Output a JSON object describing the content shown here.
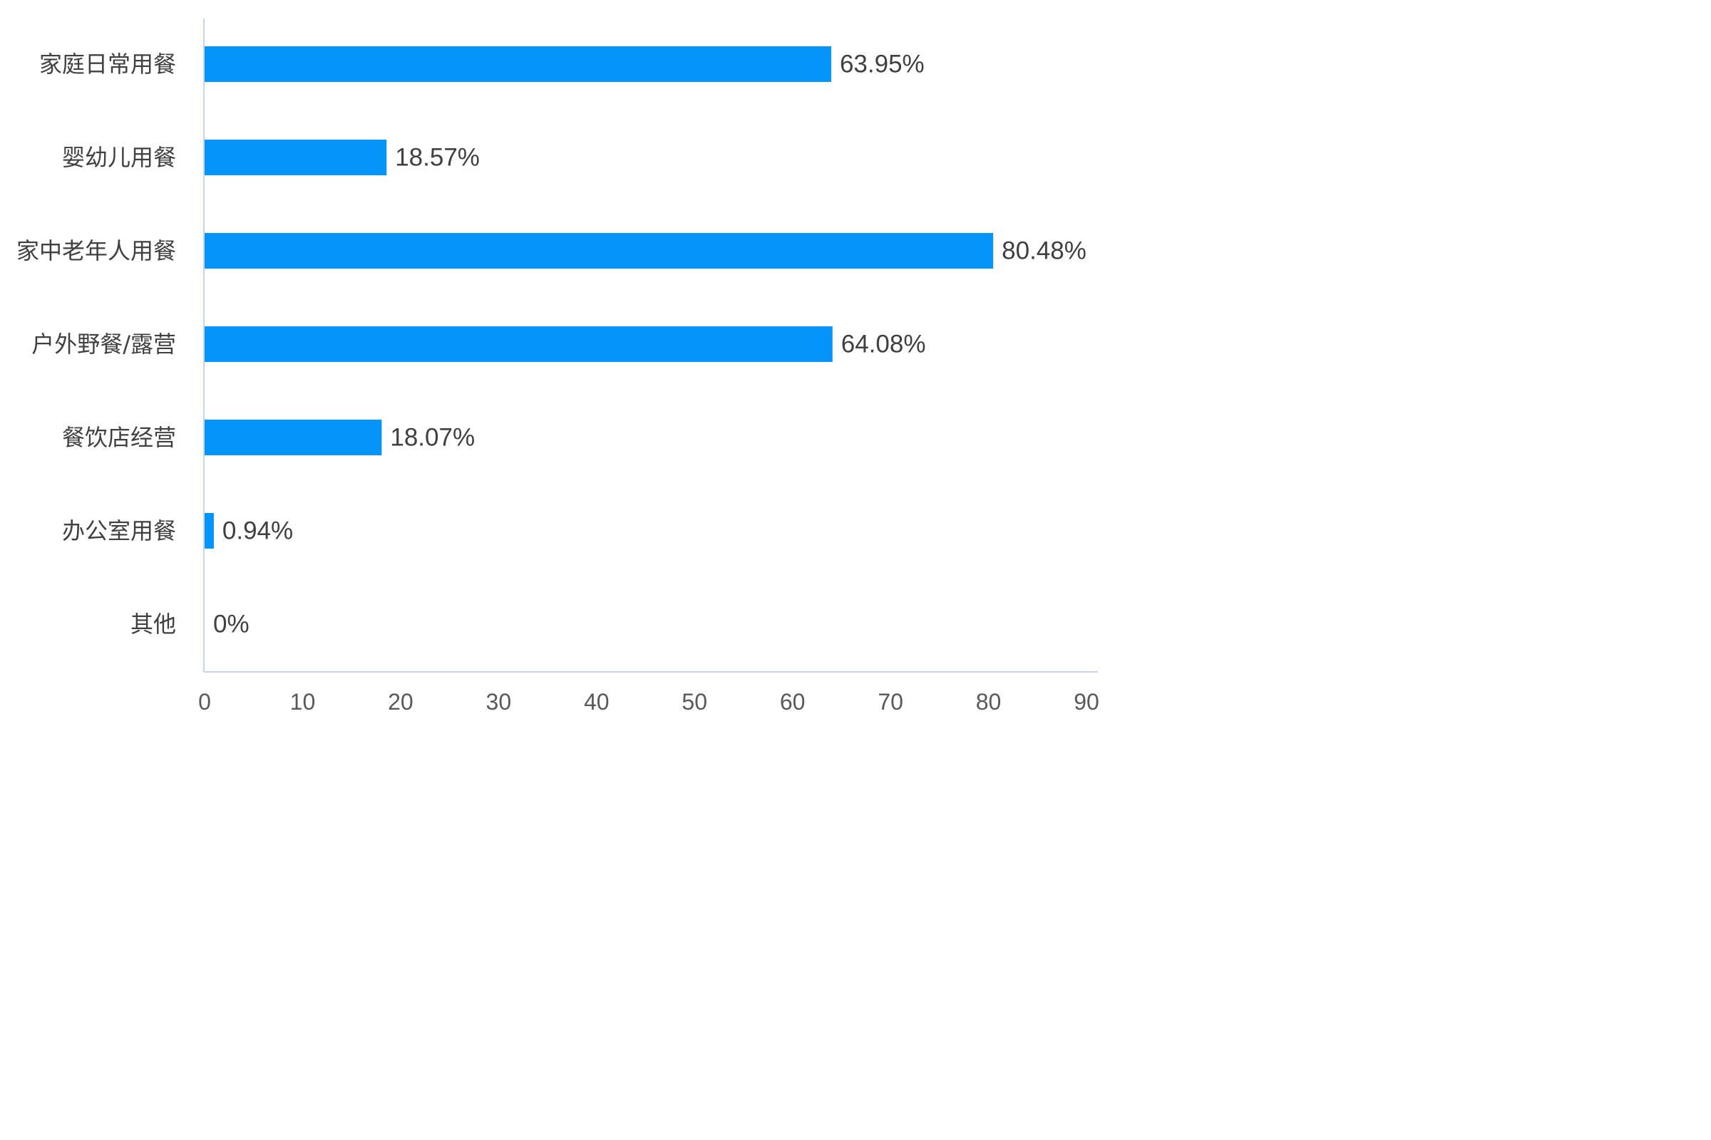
{
  "chart_data": {
    "type": "bar",
    "orientation": "horizontal",
    "categories": [
      "家庭日常用餐",
      "婴幼儿用餐",
      "家中老年人用餐",
      "户外野餐/露营",
      "餐饮店经营",
      "办公室用餐",
      "其他"
    ],
    "values": [
      63.95,
      18.57,
      80.48,
      64.08,
      18.07,
      0.94,
      0
    ],
    "value_labels": [
      "63.95%",
      "18.57%",
      "80.48%",
      "64.08%",
      "18.07%",
      "0.94%",
      "0%"
    ],
    "x_ticks": [
      "0",
      "10",
      "20",
      "30",
      "40",
      "50",
      "60",
      "70",
      "80",
      "90"
    ],
    "xlim": [
      0,
      90
    ],
    "title": "",
    "xlabel": "",
    "ylabel": "",
    "grid": false,
    "legend": "none",
    "colors": {
      "bar": "#0594FA",
      "axis": "#C9D3EE",
      "text": "#404040"
    }
  }
}
